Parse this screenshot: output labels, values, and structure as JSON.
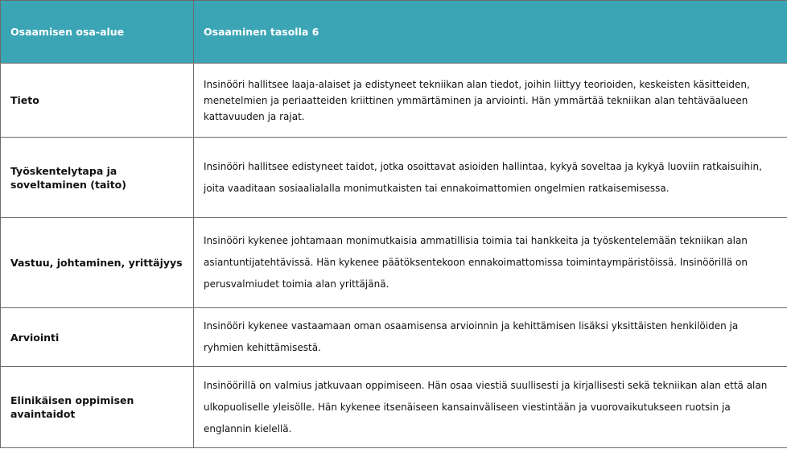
{
  "table": {
    "header": [
      "Osaamisen osa-alue",
      "Osaaminen tasolla 6"
    ],
    "rows": [
      [
        "Tieto",
        "Insinööri hallitsee laaja-alaiset ja edistyneet tekniikan alan tiedot, joihin liittyy teorioiden, keskeisten käsitteiden, menetelmien ja periaatteiden kriittinen ymmärtäminen ja arviointi. Hän ymmärtää tekniikan alan tehtäväalueen kattavuuden ja rajat."
      ],
      [
        "Työskentelytapa ja soveltaminen (taito)",
        "Insinööri hallitsee edistyneet taidot, jotka osoittavat asioiden hallintaa, kykyä soveltaa ja kykyä luoviin ratkaisuihin, joita vaaditaan sosiaalialalla monimutkaisten tai ennakoimattomien ongelmien ratkaisemisessa."
      ],
      [
        "Vastuu, johtaminen, yrittäjyys",
        "Insinööri kykenee johtamaan monimutkaisia ammatillisia toimia tai hankkeita ja työskentelemään tekniikan alan asiantuntijatehtävissä. Hän kykenee päätöksentekoon ennakoimattomissa toimintaympäristöissä. Insinöörillä on perusvalmiudet toimia alan yrittäjänä."
      ],
      [
        "Arviointi",
        "Insinööri kykenee vastaamaan oman osaamisensa arvioinnin ja kehittämisen lisäksi yksittäisten henkilöiden ja ryhmien kehittämisestä."
      ],
      [
        "Elinikäisen oppimisen avaintaidot",
        "Insinöörillä on valmius jatkuvaan oppimiseen. Hän osaa viestiä suullisesti ja kirjallisesti sekä tekniikan alan että alan ulkopuoliselle yleisölle. Hän kykenee itsenäiseen kansainväliseen viestintään ja vuorovaikutukseen ruotsin ja englannin kielellä."
      ]
    ]
  }
}
